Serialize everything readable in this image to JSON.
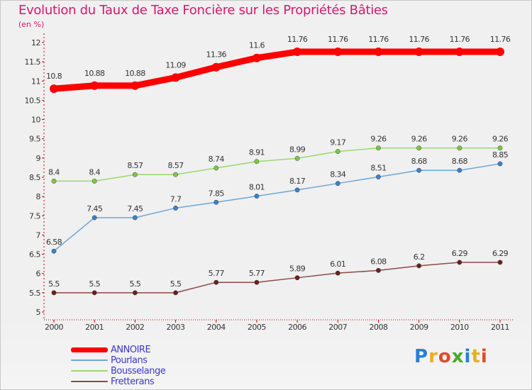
{
  "title": "Evolution du Taux de Taxe Foncière sur les Propriétés Bâties",
  "units": "(en %)",
  "logo": {
    "letters": [
      "P",
      "r",
      "o",
      "x",
      "i",
      "t",
      "i"
    ],
    "colors": [
      "#2a7fd4",
      "#e8b020",
      "#e04a2a",
      "#4aa82a",
      "#2a7fd4",
      "#e8b020",
      "#e04a2a"
    ]
  },
  "chart_data": {
    "type": "line",
    "title": "Evolution du Taux de Taxe Foncière sur les Propriétés Bâties",
    "ylabel": "(en %)",
    "xlabel": "",
    "x": [
      "2000",
      "2001",
      "2002",
      "2003",
      "2004",
      "2005",
      "2006",
      "2007",
      "2008",
      "2009",
      "2010",
      "2011"
    ],
    "ylim": [
      5,
      12
    ],
    "yticks": [
      "5",
      "5.5",
      "6",
      "6.5",
      "7",
      "7.5",
      "8",
      "8.5",
      "9",
      "9.5",
      "10",
      "10.5",
      "11",
      "11.5",
      "12"
    ],
    "grid": false,
    "legend_position": "bottom-left",
    "series": [
      {
        "name": "ANNOIRE",
        "color": "#ff0000",
        "dot": "#ff0000",
        "width": 9,
        "values": [
          10.8,
          10.88,
          10.88,
          11.09,
          11.36,
          11.6,
          11.76,
          11.76,
          11.76,
          11.76,
          11.76,
          11.76
        ],
        "labels": [
          "10.8",
          "10.88",
          "10.88",
          "11.09",
          "11.36",
          "11.6",
          "11.76",
          "11.76",
          "11.76",
          "11.76",
          "11.76",
          "11.76"
        ]
      },
      {
        "name": "Pourlans",
        "color": "#6fa6d6",
        "dot": "#3a82c8",
        "width": 1.5,
        "values": [
          6.58,
          7.45,
          7.45,
          7.7,
          7.85,
          8.01,
          8.17,
          8.34,
          8.51,
          8.68,
          8.68,
          8.85
        ],
        "labels": [
          "6.58",
          "7.45",
          "7.45",
          "7.7",
          "7.85",
          "8.01",
          "8.17",
          "8.34",
          "8.51",
          "8.68",
          "8.68",
          "8.85"
        ]
      },
      {
        "name": "Bousselange",
        "color": "#9ad870",
        "dot": "#7ac840",
        "width": 1.5,
        "values": [
          8.4,
          8.4,
          8.57,
          8.57,
          8.74,
          8.91,
          8.99,
          9.17,
          9.26,
          9.26,
          9.26,
          9.26
        ],
        "labels": [
          "8.4",
          "8.4",
          "8.57",
          "8.57",
          "8.74",
          "8.91",
          "8.99",
          "9.17",
          "9.26",
          "9.26",
          "9.26",
          "9.26"
        ]
      },
      {
        "name": "Fretterans",
        "color": "#8a4a4a",
        "dot": "#6a2020",
        "width": 1.5,
        "values": [
          5.5,
          5.5,
          5.5,
          5.5,
          5.77,
          5.77,
          5.89,
          6.01,
          6.08,
          6.2,
          6.29,
          6.29
        ],
        "labels": [
          "5.5",
          "5.5",
          "5.5",
          "5.5",
          "5.77",
          "5.77",
          "5.89",
          "6.01",
          "6.08",
          "6.2",
          "6.29",
          "6.29"
        ]
      }
    ]
  }
}
